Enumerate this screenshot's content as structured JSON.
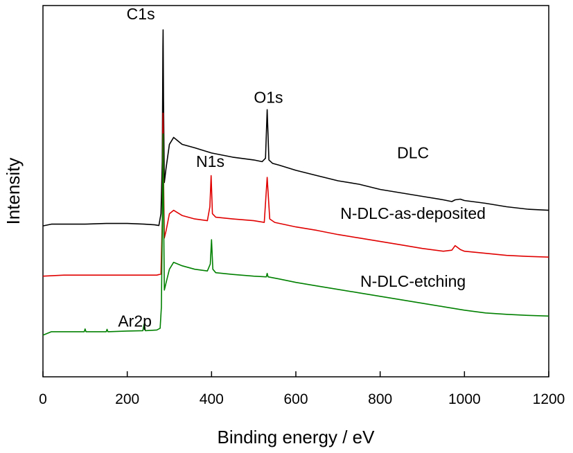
{
  "chart_data": {
    "type": "line",
    "xlabel": "Binding energy / eV",
    "ylabel": "Intensity",
    "xlim": [
      0,
      1200
    ],
    "xticks": [
      "0",
      "200",
      "400",
      "600",
      "800",
      "1000",
      "1200"
    ],
    "yticks_visible": false,
    "grid": false,
    "colors": {
      "DLC": "#000000",
      "N-DLC-as-deposited": "#e00000",
      "N-DLC-etching": "#008000"
    },
    "series": [
      {
        "name": "DLC",
        "color": "#000000",
        "x": [
          0,
          20,
          50,
          100,
          150,
          200,
          240,
          265,
          275,
          280,
          283,
          284.5,
          285,
          286,
          288,
          292,
          300,
          310,
          330,
          360,
          400,
          450,
          500,
          520,
          528,
          532,
          536,
          545,
          560,
          600,
          650,
          700,
          750,
          800,
          850,
          900,
          950,
          970,
          978,
          990,
          1000,
          1050,
          1100,
          1150,
          1200
        ],
        "y": [
          0.435,
          0.44,
          0.44,
          0.44,
          0.442,
          0.442,
          0.44,
          0.438,
          0.436,
          0.47,
          0.62,
          0.95,
          1.0,
          0.8,
          0.56,
          0.6,
          0.67,
          0.69,
          0.67,
          0.66,
          0.645,
          0.633,
          0.625,
          0.62,
          0.63,
          0.77,
          0.625,
          0.615,
          0.61,
          0.595,
          0.58,
          0.565,
          0.555,
          0.54,
          0.53,
          0.52,
          0.51,
          0.505,
          0.51,
          0.512,
          0.508,
          0.5,
          0.49,
          0.483,
          0.48
        ]
      },
      {
        "name": "N-DLC-as-deposited",
        "color": "#e00000",
        "x": [
          0,
          50,
          100,
          150,
          200,
          240,
          270,
          280,
          283,
          284.5,
          285,
          286,
          288,
          292,
          300,
          310,
          330,
          360,
          390,
          396,
          399,
          402,
          410,
          450,
          500,
          525,
          532,
          538,
          550,
          600,
          650,
          700,
          750,
          800,
          850,
          900,
          950,
          970,
          978,
          990,
          1000,
          1050,
          1100,
          1150,
          1200
        ],
        "y": [
          0.29,
          0.293,
          0.293,
          0.293,
          0.293,
          0.293,
          0.293,
          0.296,
          0.45,
          0.72,
          0.76,
          0.58,
          0.4,
          0.42,
          0.47,
          0.48,
          0.465,
          0.455,
          0.45,
          0.49,
          0.58,
          0.47,
          0.46,
          0.455,
          0.45,
          0.445,
          0.575,
          0.455,
          0.445,
          0.432,
          0.422,
          0.41,
          0.4,
          0.39,
          0.38,
          0.37,
          0.362,
          0.365,
          0.378,
          0.367,
          0.362,
          0.356,
          0.35,
          0.347,
          0.345
        ]
      },
      {
        "name": "N-DLC-etching",
        "color": "#008000",
        "x": [
          0,
          20,
          50,
          98,
          100,
          102,
          150,
          152,
          154,
          200,
          237,
          240,
          243,
          270,
          278,
          281,
          283,
          284.5,
          285,
          286,
          288,
          292,
          300,
          310,
          330,
          360,
          390,
          397,
          400,
          403,
          410,
          450,
          500,
          530,
          532,
          534,
          560,
          600,
          650,
          700,
          750,
          800,
          850,
          900,
          950,
          1000,
          1050,
          1100,
          1150,
          1200
        ],
        "y": [
          0.12,
          0.13,
          0.13,
          0.13,
          0.138,
          0.13,
          0.13,
          0.137,
          0.13,
          0.132,
          0.133,
          0.152,
          0.133,
          0.135,
          0.14,
          0.2,
          0.42,
          0.64,
          0.7,
          0.5,
          0.25,
          0.27,
          0.31,
          0.33,
          0.32,
          0.31,
          0.305,
          0.325,
          0.395,
          0.31,
          0.3,
          0.295,
          0.29,
          0.288,
          0.298,
          0.288,
          0.282,
          0.272,
          0.262,
          0.252,
          0.242,
          0.232,
          0.222,
          0.212,
          0.202,
          0.192,
          0.184,
          0.18,
          0.177,
          0.175
        ]
      }
    ],
    "annotations": [
      {
        "text": "C1s",
        "x": 232,
        "y": 1.03
      },
      {
        "text": "O1s",
        "x": 535,
        "y": 0.79
      },
      {
        "text": "N1s",
        "x": 397,
        "y": 0.605
      },
      {
        "text": "DLC",
        "x": 878,
        "y": 0.63
      },
      {
        "text": "N-DLC-as-deposited",
        "x": 878,
        "y": 0.455
      },
      {
        "text": "N-DLC-etching",
        "x": 878,
        "y": 0.26
      },
      {
        "text": "Ar2p",
        "x": 218,
        "y": 0.145
      }
    ]
  }
}
